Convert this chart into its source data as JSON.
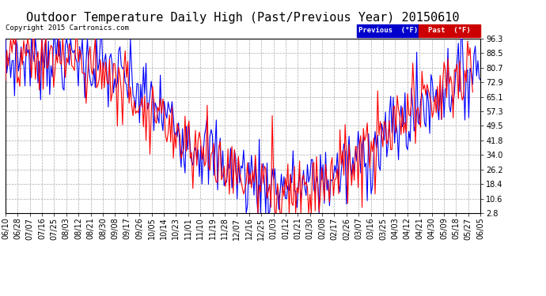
{
  "title": "Outdoor Temperature Daily High (Past/Previous Year) 20150610",
  "copyright": "Copyright 2015 Cartronics.com",
  "legend_previous": "Previous  (°F)",
  "legend_past": "Past  (°F)",
  "legend_prev_bg": "#0000cc",
  "legend_past_bg": "#cc0000",
  "y_ticks": [
    2.8,
    10.6,
    18.4,
    26.2,
    34.0,
    41.8,
    49.5,
    57.3,
    65.1,
    72.9,
    80.7,
    88.5,
    96.3
  ],
  "ylim": [
    2.8,
    96.3
  ],
  "x_labels": [
    "06/10",
    "06/28",
    "07/07",
    "07/16",
    "07/25",
    "08/03",
    "08/12",
    "08/21",
    "08/30",
    "09/08",
    "09/17",
    "09/26",
    "10/05",
    "10/14",
    "10/23",
    "11/01",
    "11/10",
    "11/19",
    "11/28",
    "12/07",
    "12/16",
    "12/25",
    "01/03",
    "01/12",
    "01/21",
    "01/30",
    "02/08",
    "02/17",
    "02/26",
    "03/07",
    "03/16",
    "03/25",
    "04/03",
    "04/12",
    "04/21",
    "04/30",
    "05/09",
    "05/18",
    "05/27",
    "06/05"
  ],
  "bg_color": "#ffffff",
  "plot_bg": "#ffffff",
  "grid_color": "#aaaaaa",
  "line_width": 0.8,
  "title_fontsize": 11,
  "tick_fontsize": 7
}
